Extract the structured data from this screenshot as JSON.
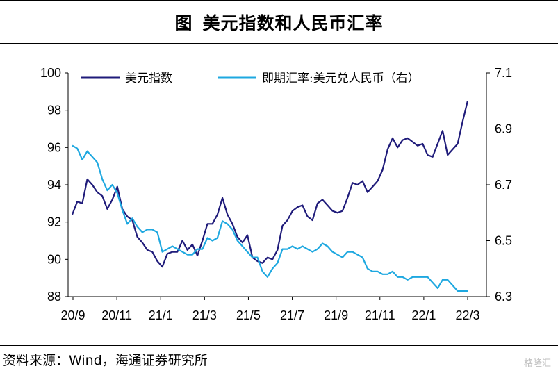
{
  "title": {
    "prefix": "图",
    "text": "美元指数和人民币汇率"
  },
  "source": "资料来源：Wind，海通证券研究所",
  "watermark": "格隆汇",
  "chart_data": {
    "type": "line",
    "x_ticks": [
      "20/9",
      "20/11",
      "21/1",
      "21/3",
      "21/5",
      "21/7",
      "21/9",
      "21/11",
      "22/1",
      "22/3"
    ],
    "x_range": [
      "2020-09-01",
      "2022-03-08"
    ],
    "y_left": {
      "ticks": [
        "88",
        "90",
        "92",
        "94",
        "96",
        "98",
        "100"
      ],
      "lim": [
        88,
        100
      ]
    },
    "y_right": {
      "ticks": [
        "6.3",
        "6.5",
        "6.7",
        "6.9",
        "7.1"
      ],
      "lim": [
        6.3,
        7.1
      ]
    },
    "legend_position": "top",
    "series": [
      {
        "name": "美元指数",
        "axis": "left",
        "color": "#1f1b7a",
        "points": [
          [
            "2020-09-01",
            92.4
          ],
          [
            "2020-09-08",
            93.1
          ],
          [
            "2020-09-15",
            93.0
          ],
          [
            "2020-09-22",
            94.3
          ],
          [
            "2020-09-29",
            94.0
          ],
          [
            "2020-10-06",
            93.6
          ],
          [
            "2020-10-13",
            93.4
          ],
          [
            "2020-10-20",
            92.7
          ],
          [
            "2020-10-27",
            93.2
          ],
          [
            "2020-11-03",
            93.9
          ],
          [
            "2020-11-10",
            92.7
          ],
          [
            "2020-11-17",
            92.3
          ],
          [
            "2020-11-24",
            92.1
          ],
          [
            "2020-12-01",
            91.2
          ],
          [
            "2020-12-08",
            90.9
          ],
          [
            "2020-12-15",
            90.5
          ],
          [
            "2020-12-22",
            90.4
          ],
          [
            "2020-12-29",
            89.9
          ],
          [
            "2021-01-05",
            89.6
          ],
          [
            "2021-01-12",
            90.3
          ],
          [
            "2021-01-19",
            90.4
          ],
          [
            "2021-01-26",
            90.4
          ],
          [
            "2021-02-02",
            91.0
          ],
          [
            "2021-02-09",
            90.5
          ],
          [
            "2021-02-16",
            90.8
          ],
          [
            "2021-02-23",
            90.2
          ],
          [
            "2021-03-02",
            91.0
          ],
          [
            "2021-03-09",
            91.9
          ],
          [
            "2021-03-16",
            91.9
          ],
          [
            "2021-03-23",
            92.4
          ],
          [
            "2021-03-30",
            93.3
          ],
          [
            "2021-04-06",
            92.4
          ],
          [
            "2021-04-13",
            91.9
          ],
          [
            "2021-04-20",
            91.2
          ],
          [
            "2021-04-27",
            90.9
          ],
          [
            "2021-05-04",
            91.3
          ],
          [
            "2021-05-11",
            90.1
          ],
          [
            "2021-05-18",
            89.9
          ],
          [
            "2021-05-25",
            89.8
          ],
          [
            "2021-06-01",
            90.1
          ],
          [
            "2021-06-08",
            90.0
          ],
          [
            "2021-06-15",
            90.5
          ],
          [
            "2021-06-22",
            91.8
          ],
          [
            "2021-06-29",
            92.1
          ],
          [
            "2021-07-06",
            92.6
          ],
          [
            "2021-07-13",
            92.8
          ],
          [
            "2021-07-20",
            92.9
          ],
          [
            "2021-07-27",
            92.3
          ],
          [
            "2021-08-03",
            92.1
          ],
          [
            "2021-08-10",
            93.0
          ],
          [
            "2021-08-17",
            93.2
          ],
          [
            "2021-08-24",
            92.9
          ],
          [
            "2021-08-31",
            92.6
          ],
          [
            "2021-09-07",
            92.5
          ],
          [
            "2021-09-14",
            92.6
          ],
          [
            "2021-09-21",
            93.3
          ],
          [
            "2021-09-28",
            94.1
          ],
          [
            "2021-10-05",
            94.0
          ],
          [
            "2021-10-12",
            94.2
          ],
          [
            "2021-10-19",
            93.6
          ],
          [
            "2021-10-26",
            93.9
          ],
          [
            "2021-11-02",
            94.2
          ],
          [
            "2021-11-09",
            94.8
          ],
          [
            "2021-11-16",
            95.9
          ],
          [
            "2021-11-23",
            96.5
          ],
          [
            "2021-11-30",
            96.0
          ],
          [
            "2021-12-07",
            96.4
          ],
          [
            "2021-12-14",
            96.5
          ],
          [
            "2021-12-21",
            96.3
          ],
          [
            "2021-12-28",
            96.1
          ],
          [
            "2022-01-04",
            96.2
          ],
          [
            "2022-01-11",
            95.6
          ],
          [
            "2022-01-18",
            95.5
          ],
          [
            "2022-01-25",
            96.2
          ],
          [
            "2022-02-01",
            96.9
          ],
          [
            "2022-02-08",
            95.6
          ],
          [
            "2022-02-15",
            95.9
          ],
          [
            "2022-02-22",
            96.2
          ],
          [
            "2022-03-01",
            97.4
          ],
          [
            "2022-03-08",
            98.5
          ]
        ]
      },
      {
        "name": "即期汇率:美元兑人民币（右）",
        "axis": "right",
        "color": "#1ea8e0",
        "points": [
          [
            "2020-09-01",
            6.84
          ],
          [
            "2020-09-08",
            6.83
          ],
          [
            "2020-09-15",
            6.79
          ],
          [
            "2020-09-22",
            6.82
          ],
          [
            "2020-09-29",
            6.8
          ],
          [
            "2020-10-06",
            6.78
          ],
          [
            "2020-10-13",
            6.72
          ],
          [
            "2020-10-20",
            6.68
          ],
          [
            "2020-10-27",
            6.7
          ],
          [
            "2020-11-03",
            6.67
          ],
          [
            "2020-11-10",
            6.61
          ],
          [
            "2020-11-17",
            6.56
          ],
          [
            "2020-11-24",
            6.58
          ],
          [
            "2020-12-01",
            6.55
          ],
          [
            "2020-12-08",
            6.53
          ],
          [
            "2020-12-15",
            6.54
          ],
          [
            "2020-12-22",
            6.54
          ],
          [
            "2020-12-29",
            6.53
          ],
          [
            "2021-01-05",
            6.46
          ],
          [
            "2021-01-12",
            6.47
          ],
          [
            "2021-01-19",
            6.48
          ],
          [
            "2021-01-26",
            6.47
          ],
          [
            "2021-02-02",
            6.46
          ],
          [
            "2021-02-09",
            6.45
          ],
          [
            "2021-02-16",
            6.45
          ],
          [
            "2021-02-23",
            6.47
          ],
          [
            "2021-03-02",
            6.47
          ],
          [
            "2021-03-09",
            6.51
          ],
          [
            "2021-03-16",
            6.5
          ],
          [
            "2021-03-23",
            6.51
          ],
          [
            "2021-03-30",
            6.57
          ],
          [
            "2021-04-06",
            6.56
          ],
          [
            "2021-04-13",
            6.54
          ],
          [
            "2021-04-20",
            6.5
          ],
          [
            "2021-04-27",
            6.48
          ],
          [
            "2021-05-04",
            6.46
          ],
          [
            "2021-05-11",
            6.44
          ],
          [
            "2021-05-18",
            6.44
          ],
          [
            "2021-05-25",
            6.39
          ],
          [
            "2021-06-01",
            6.37
          ],
          [
            "2021-06-08",
            6.4
          ],
          [
            "2021-06-15",
            6.42
          ],
          [
            "2021-06-22",
            6.47
          ],
          [
            "2021-06-29",
            6.47
          ],
          [
            "2021-07-06",
            6.48
          ],
          [
            "2021-07-13",
            6.47
          ],
          [
            "2021-07-20",
            6.48
          ],
          [
            "2021-07-27",
            6.47
          ],
          [
            "2021-08-03",
            6.46
          ],
          [
            "2021-08-10",
            6.47
          ],
          [
            "2021-08-17",
            6.49
          ],
          [
            "2021-08-24",
            6.48
          ],
          [
            "2021-08-31",
            6.46
          ],
          [
            "2021-09-07",
            6.45
          ],
          [
            "2021-09-14",
            6.44
          ],
          [
            "2021-09-21",
            6.46
          ],
          [
            "2021-09-28",
            6.46
          ],
          [
            "2021-10-05",
            6.45
          ],
          [
            "2021-10-12",
            6.44
          ],
          [
            "2021-10-19",
            6.4
          ],
          [
            "2021-10-26",
            6.39
          ],
          [
            "2021-11-02",
            6.39
          ],
          [
            "2021-11-09",
            6.38
          ],
          [
            "2021-11-16",
            6.38
          ],
          [
            "2021-11-23",
            6.39
          ],
          [
            "2021-11-30",
            6.37
          ],
          [
            "2021-12-07",
            6.37
          ],
          [
            "2021-12-14",
            6.36
          ],
          [
            "2021-12-21",
            6.37
          ],
          [
            "2021-12-28",
            6.37
          ],
          [
            "2022-01-04",
            6.37
          ],
          [
            "2022-01-11",
            6.37
          ],
          [
            "2022-01-18",
            6.35
          ],
          [
            "2022-01-25",
            6.33
          ],
          [
            "2022-02-01",
            6.36
          ],
          [
            "2022-02-08",
            6.36
          ],
          [
            "2022-02-15",
            6.34
          ],
          [
            "2022-02-22",
            6.32
          ],
          [
            "2022-03-01",
            6.32
          ],
          [
            "2022-03-08",
            6.32
          ]
        ]
      }
    ]
  }
}
